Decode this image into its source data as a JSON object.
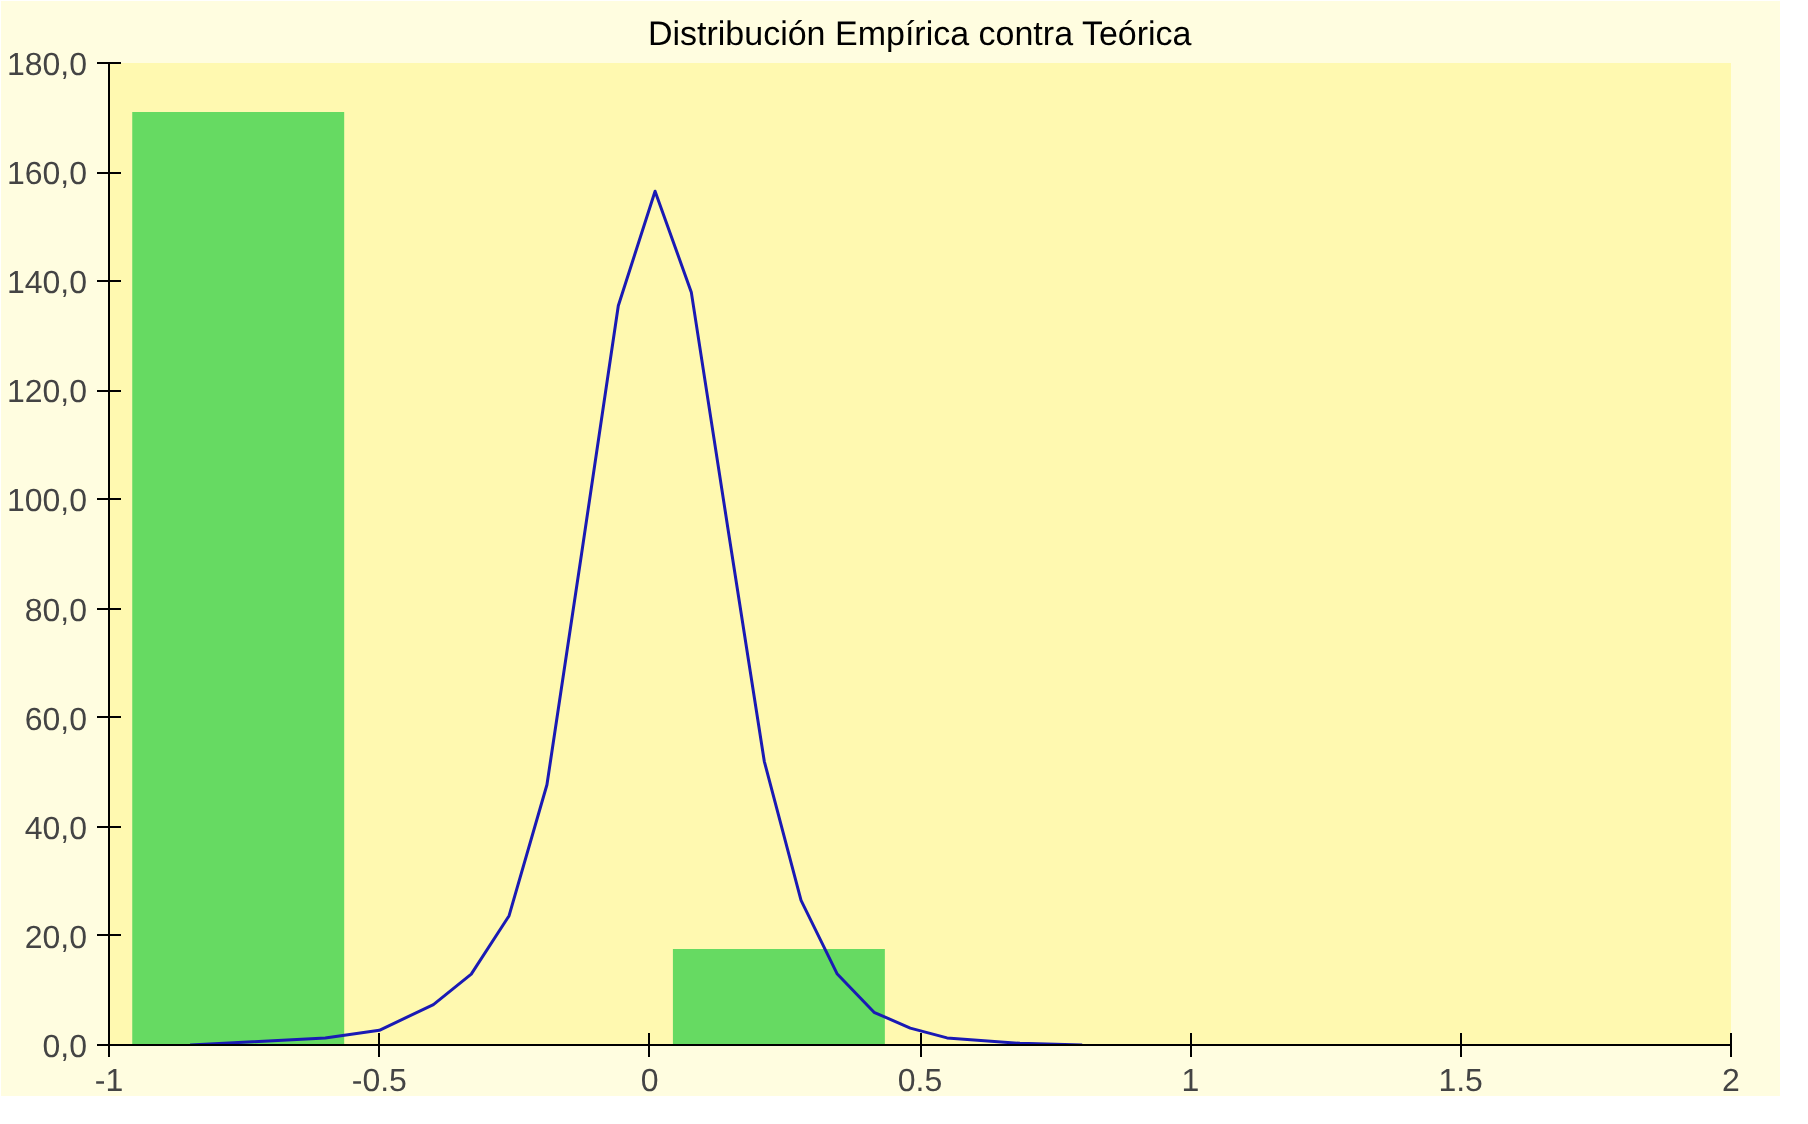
{
  "chart_data": {
    "type": "histogram",
    "title": "Distribución Empírica contra Teórica",
    "xlim": [
      -1,
      2
    ],
    "xticks": [
      -1,
      -0.5,
      0,
      0.5,
      1,
      1.5,
      2
    ],
    "ylim": [
      0,
      180
    ],
    "yticks": [
      {
        "value": 0,
        "label": "0,0"
      },
      {
        "value": 20,
        "label": "20,0"
      },
      {
        "value": 40,
        "label": "40,0"
      },
      {
        "value": 60,
        "label": "60,0"
      },
      {
        "value": 80,
        "label": "80,0"
      },
      {
        "value": 100,
        "label": "100,0"
      },
      {
        "value": 120,
        "label": "120,0"
      },
      {
        "value": 140,
        "label": "140,0"
      },
      {
        "value": 160,
        "label": "160,0"
      },
      {
        "value": 180,
        "label": "180,0"
      }
    ],
    "grid": false,
    "series": [
      {
        "color": "#5ed85e",
        "bins": [
          -0.957,
          -0.565,
          0.043,
          0.435
        ],
        "values": [
          171,
          0,
          17.6
        ]
      },
      {
        "type": "line",
        "color": "#1a1ab4",
        "x": [
          -0.85,
          -0.734,
          -0.6,
          -0.5,
          -0.4,
          -0.33,
          -0.26,
          -0.19,
          -0.126,
          -0.058,
          0.01,
          0.077,
          0.145,
          0.212,
          0.28,
          0.347,
          0.415,
          0.482,
          0.55,
          0.685,
          0.8
        ],
        "values": [
          0,
          0.6,
          1.3,
          2.7,
          7.4,
          13,
          23.7,
          47.7,
          90,
          135.5,
          156.5,
          138,
          94.5,
          52,
          26.5,
          13,
          6,
          3.1,
          1.3,
          0.3,
          0
        ]
      }
    ]
  }
}
